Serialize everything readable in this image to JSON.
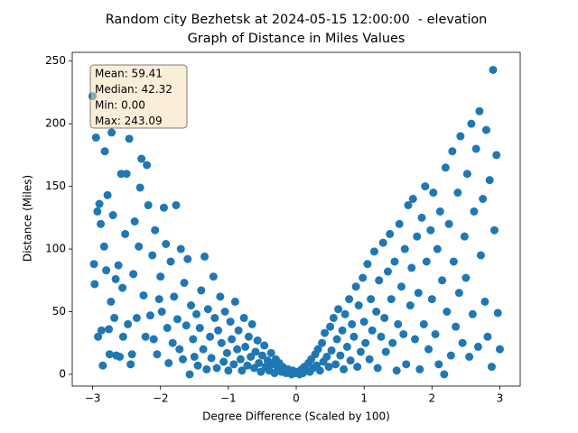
{
  "chart_data": {
    "type": "scatter",
    "title": "Random city Bezhetsk at 2024-05-15 12:00:00  - elevation",
    "subtitle": "Graph of Distance in Miles Values",
    "xlabel": "Degree Difference (Scaled by 100)",
    "ylabel": "Distance (Miles)",
    "annotation": [
      "Mean: 59.41",
      "Median: 42.32",
      "Min: 0.00",
      "Max: 243.09"
    ],
    "color": "#1f77b4",
    "xlim": [
      -3.3,
      3.3
    ],
    "ylim": [
      -9.4,
      257
    ],
    "xticks": [
      {
        "value": -3,
        "label": "−3"
      },
      {
        "value": -2,
        "label": "−2"
      },
      {
        "value": -1,
        "label": "−1"
      },
      0,
      1,
      2,
      3
    ],
    "yticks": [
      0,
      50,
      100,
      150,
      200,
      250
    ],
    "grid": false,
    "x": [
      -3,
      -2.98,
      -2.97,
      -2.95,
      -2.93,
      -2.92,
      -2.9,
      -2.88,
      -2.87,
      -2.85,
      -2.83,
      -2.82,
      -2.8,
      -2.78,
      -2.76,
      -2.75,
      -2.73,
      -2.72,
      -2.7,
      -2.68,
      -2.66,
      -2.65,
      -2.62,
      -2.6,
      -2.58,
      -2.56,
      -2.55,
      -2.52,
      -2.5,
      -2.48,
      -2.46,
      -2.44,
      -2.42,
      -2.4,
      -2.38,
      -2.35,
      -2.32,
      -2.3,
      -2.28,
      -2.25,
      -2.22,
      -2.2,
      -2.18,
      -2.15,
      -2.12,
      -2.1,
      -2.08,
      -2.05,
      -2.02,
      -2.0,
      -1.98,
      -1.95,
      -1.92,
      -1.9,
      -1.88,
      -1.85,
      -1.82,
      -1.8,
      -1.77,
      -1.75,
      -1.72,
      -1.7,
      -1.67,
      -1.65,
      -1.62,
      -1.6,
      -1.57,
      -1.55,
      -1.52,
      -1.5,
      -1.47,
      -1.45,
      -1.42,
      -1.4,
      -1.37,
      -1.35,
      -1.32,
      -1.3,
      -1.27,
      -1.25,
      -1.22,
      -1.2,
      -1.17,
      -1.15,
      -1.12,
      -1.1,
      -1.07,
      -1.05,
      -1.02,
      -1.0,
      -0.97,
      -0.95,
      -0.92,
      -0.9,
      -0.87,
      -0.85,
      -0.82,
      -0.8,
      -0.77,
      -0.75,
      -0.72,
      -0.7,
      -0.67,
      -0.65,
      -0.62,
      -0.6,
      -0.57,
      -0.55,
      -0.52,
      -0.5,
      -0.47,
      -0.45,
      -0.42,
      -0.4,
      -0.37,
      -0.35,
      -0.32,
      -0.3,
      -0.27,
      -0.25,
      -0.22,
      -0.2,
      -0.17,
      -0.15,
      -0.12,
      -0.1,
      -0.07,
      -0.05,
      -0.02,
      0.02,
      0.05,
      0.08,
      0.1,
      0.12,
      0.15,
      0.18,
      0.2,
      0.22,
      0.25,
      0.28,
      0.3,
      0.32,
      0.35,
      0.38,
      0.4,
      0.42,
      0.45,
      0.48,
      0.5,
      0.52,
      0.55,
      0.58,
      0.6,
      0.62,
      0.65,
      0.68,
      0.7,
      0.72,
      0.75,
      0.78,
      0.8,
      0.82,
      0.85,
      0.88,
      0.9,
      0.92,
      0.95,
      0.98,
      1.0,
      1.02,
      1.05,
      1.08,
      1.1,
      1.12,
      1.15,
      1.18,
      1.2,
      1.22,
      1.25,
      1.28,
      1.3,
      1.32,
      1.35,
      1.38,
      1.4,
      1.42,
      1.45,
      1.48,
      1.5,
      1.52,
      1.55,
      1.58,
      1.6,
      1.62,
      1.65,
      1.68,
      1.7,
      1.72,
      1.75,
      1.78,
      1.8,
      1.82,
      1.85,
      1.88,
      1.9,
      1.92,
      1.95,
      1.98,
      2.0,
      2.02,
      2.05,
      2.08,
      2.1,
      2.12,
      2.15,
      2.18,
      2.2,
      2.22,
      2.25,
      2.28,
      2.3,
      2.32,
      2.35,
      2.38,
      2.4,
      2.42,
      2.45,
      2.48,
      2.5,
      2.52,
      2.55,
      2.58,
      2.6,
      2.62,
      2.65,
      2.68,
      2.7,
      2.72,
      2.75,
      2.78,
      2.8,
      2.82,
      2.85,
      2.88,
      2.9,
      2.92,
      2.95,
      2.97,
      3.0
    ],
    "values": [
      222,
      88,
      72,
      189,
      130,
      30,
      136,
      120,
      35,
      7,
      102,
      178,
      83,
      143,
      36,
      16,
      58,
      193,
      127,
      45,
      76,
      15,
      87,
      14,
      160,
      69,
      30,
      112,
      160,
      40,
      188,
      8,
      16,
      80,
      122,
      45,
      102,
      149,
      172,
      63,
      30,
      167,
      135,
      47,
      95,
      28,
      115,
      16,
      60,
      78,
      50,
      133,
      104,
      37,
      9,
      90,
      25,
      62,
      135,
      44,
      20,
      100,
      12,
      73,
      39,
      92,
      0,
      55,
      28,
      14,
      48,
      7,
      37,
      67,
      20,
      94,
      4,
      52,
      30,
      13,
      78,
      45,
      5,
      35,
      62,
      25,
      10,
      50,
      17,
      3,
      42,
      28,
      8,
      58,
      20,
      35,
      12,
      3,
      45,
      22,
      7,
      30,
      14,
      40,
      5,
      18,
      27,
      9,
      2,
      15,
      23,
      6,
      11,
      3,
      17,
      8,
      1,
      12,
      5,
      9,
      2,
      6,
      3,
      1,
      4,
      2,
      0,
      3,
      1,
      2,
      0,
      4,
      1,
      6,
      3,
      9,
      2,
      12,
      5,
      16,
      7,
      20,
      3,
      25,
      10,
      33,
      14,
      6,
      38,
      19,
      45,
      8,
      28,
      52,
      15,
      35,
      4,
      48,
      22,
      60,
      11,
      40,
      30,
      70,
      6,
      55,
      18,
      77,
      42,
      25,
      88,
      12,
      60,
      35,
      98,
      50,
      5,
      75,
      30,
      105,
      45,
      18,
      82,
      112,
      60,
      25,
      90,
      3,
      40,
      120,
      70,
      32,
      100,
      8,
      135,
      55,
      85,
      140,
      28,
      110,
      65,
      4,
      125,
      40,
      150,
      90,
      20,
      115,
      60,
      145,
      32,
      100,
      8,
      130,
      75,
      0,
      165,
      50,
      120,
      15,
      178,
      90,
      38,
      145,
      65,
      190,
      25,
      110,
      77,
      160,
      14,
      200,
      48,
      130,
      180,
      22,
      210,
      95,
      140,
      58,
      195,
      30,
      155,
      6,
      243,
      115,
      175,
      49,
      20
    ]
  }
}
